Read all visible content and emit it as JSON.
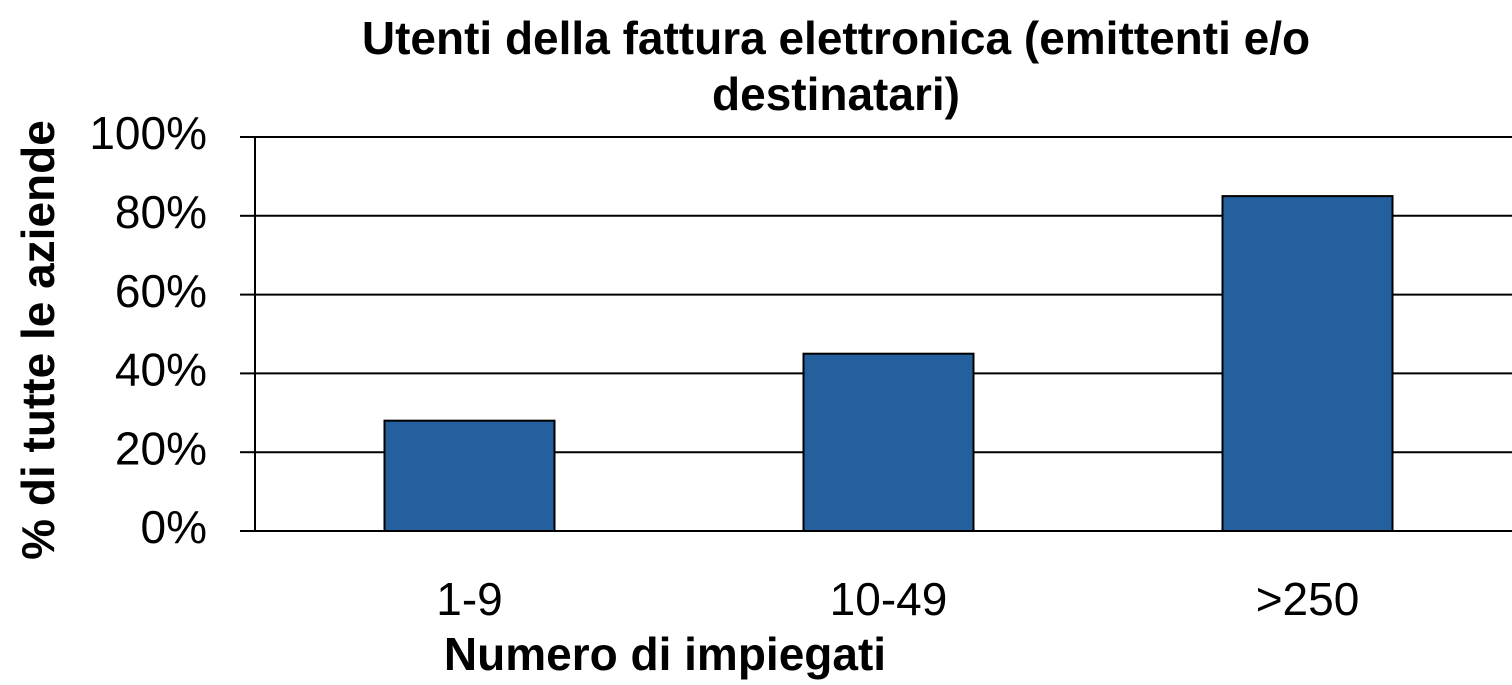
{
  "chart_data": {
    "type": "bar",
    "title": "Utenti della fattura elettronica (emittenti e/o destinatari)",
    "x_label": "Numero di impiegati",
    "y_label": "% di tutte le aziende",
    "categories": [
      "1-9",
      "10-49",
      ">250"
    ],
    "values": [
      28,
      45,
      85
    ],
    "color": "#245f9e",
    "ylim": [
      0,
      100
    ],
    "yticks": [
      {
        "value": 0,
        "label": "0%"
      },
      {
        "value": 20,
        "label": "20%"
      },
      {
        "value": 40,
        "label": "40%"
      },
      {
        "value": 60,
        "label": "60%"
      },
      {
        "value": 80,
        "label": "80%"
      },
      {
        "value": 100,
        "label": "100%"
      }
    ],
    "grid": true
  }
}
